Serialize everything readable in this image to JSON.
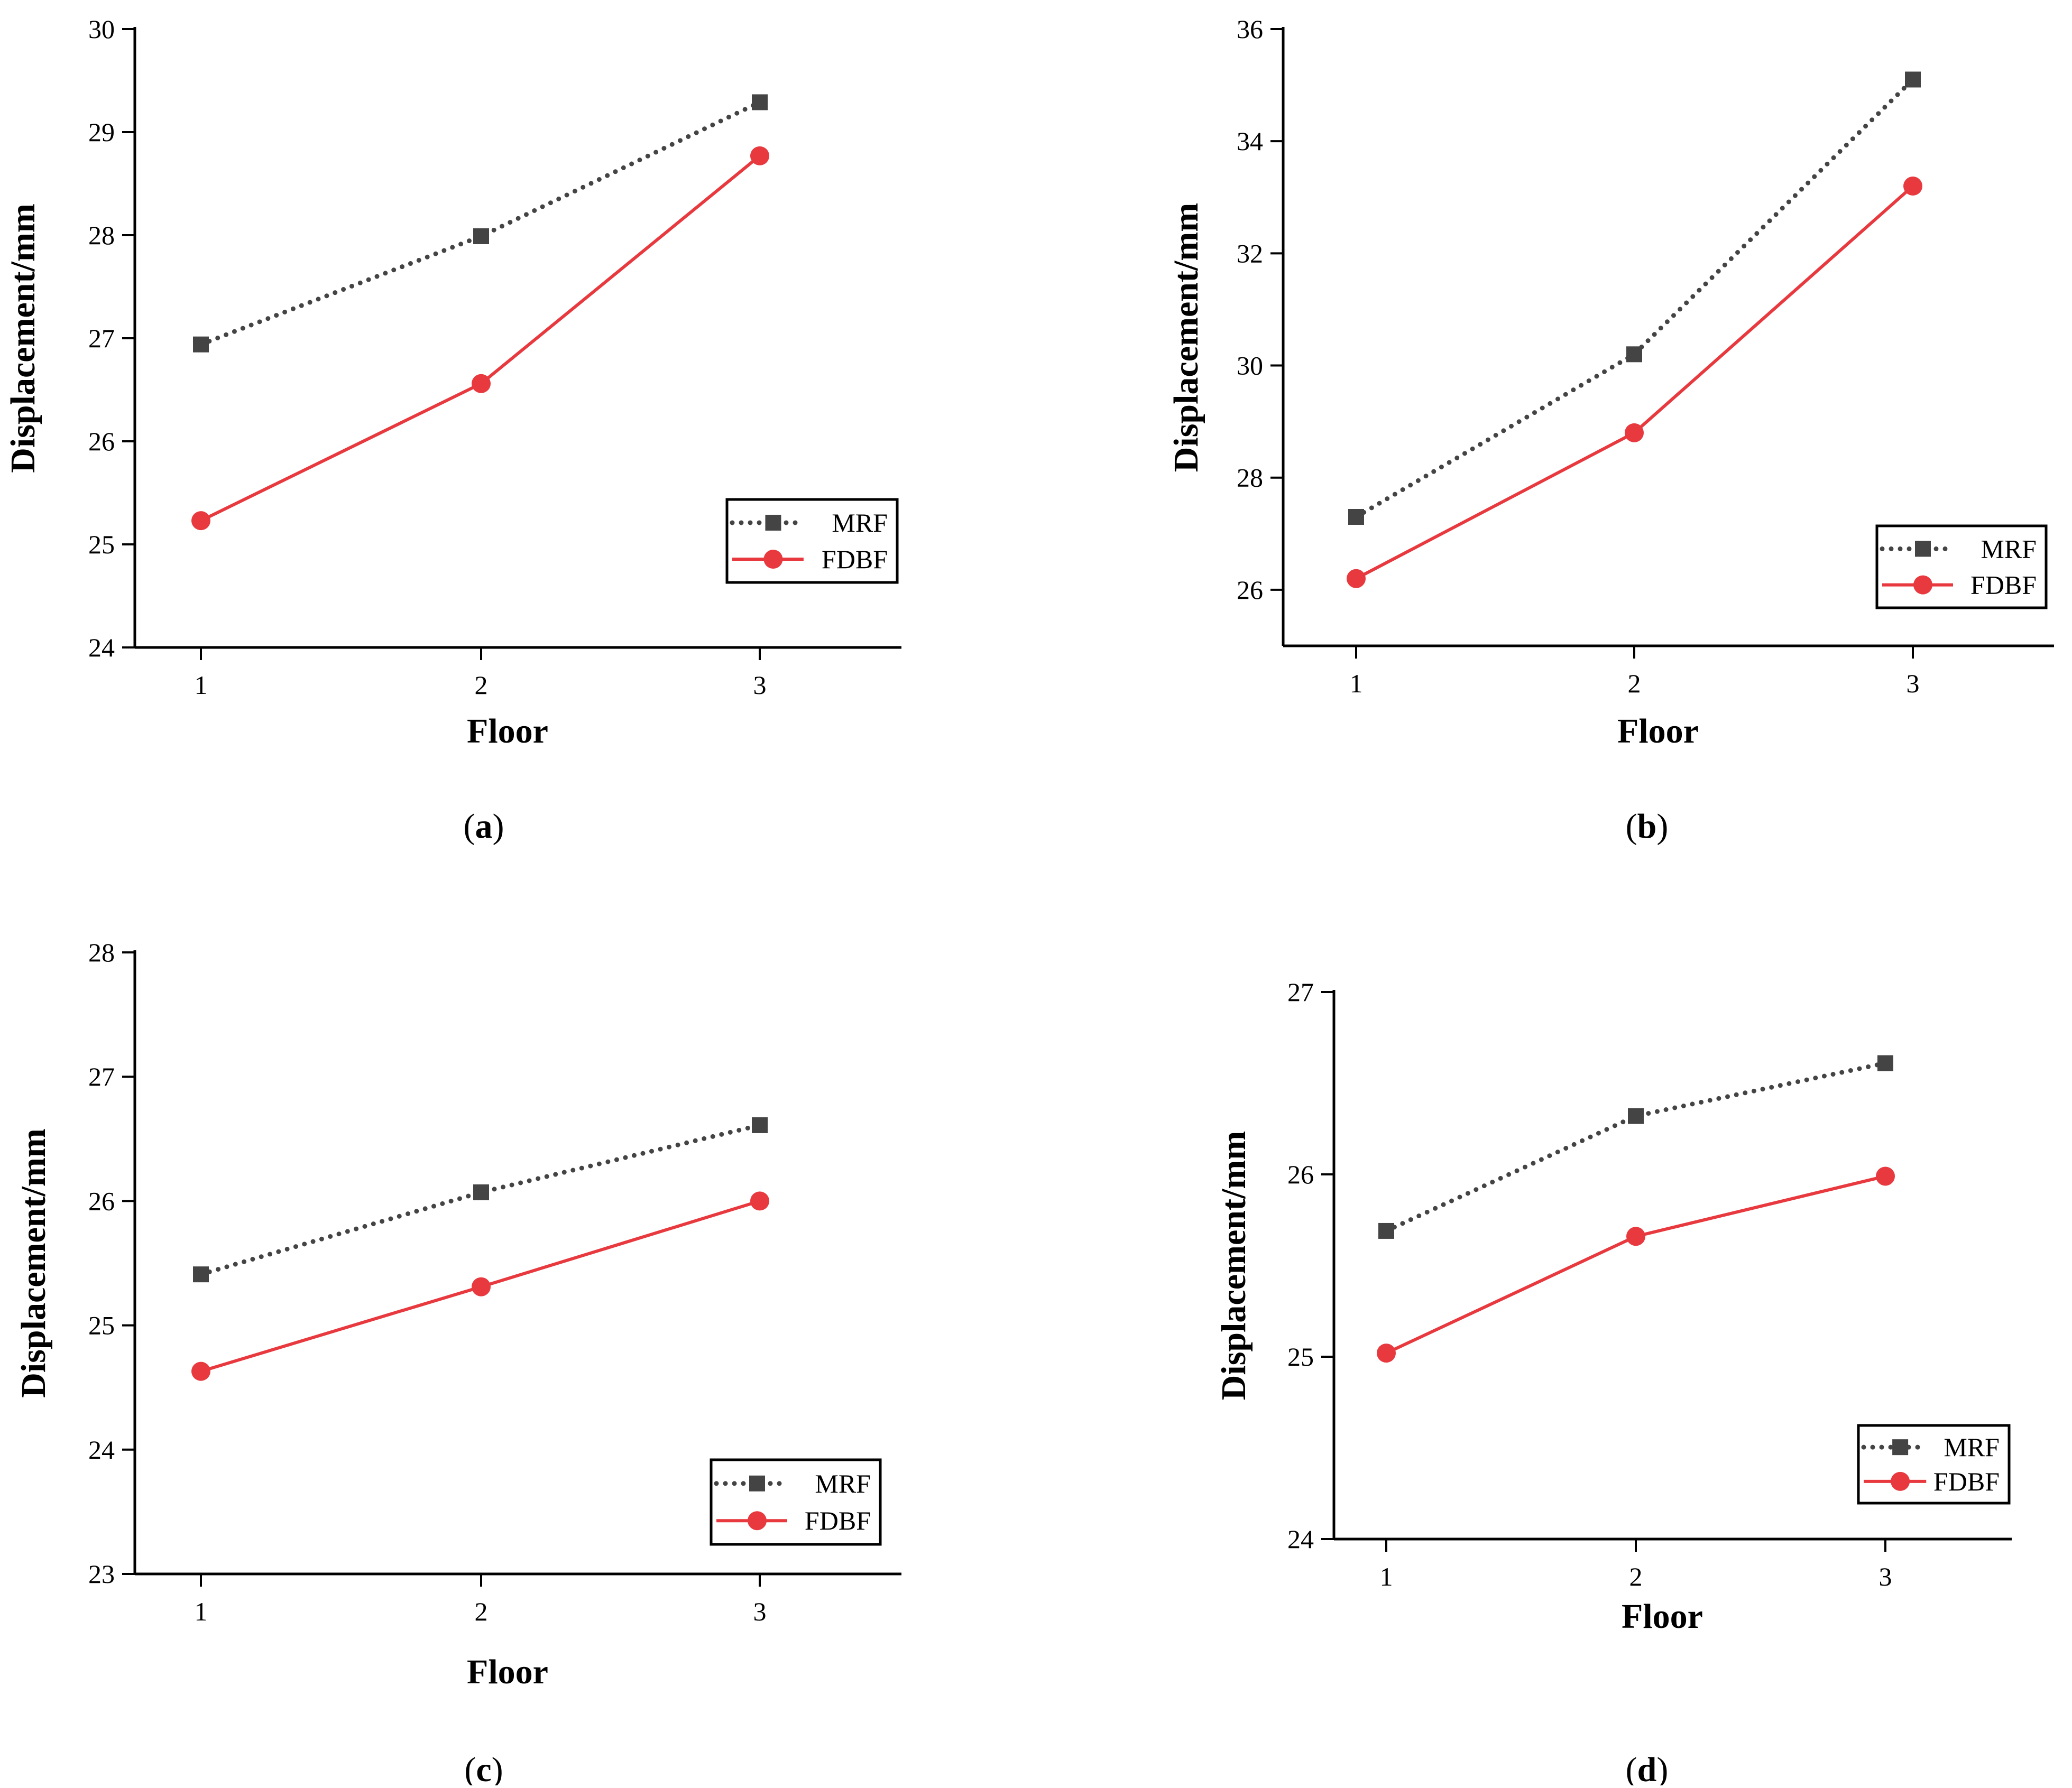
{
  "colors": {
    "mrf": "#444444",
    "fdbf": "#e8393f",
    "axis": "#000000"
  },
  "chart_data": [
    {
      "id": "a",
      "type": "line",
      "caption_letter": "a",
      "xlabel": "Floor",
      "ylabel": "Displacement/mm",
      "categories": [
        1,
        2,
        3
      ],
      "x_ticks": [
        "1",
        "2",
        "3"
      ],
      "ylim": [
        24,
        30
      ],
      "y_ticks": [
        24,
        25,
        26,
        27,
        28,
        29,
        30
      ],
      "legend": {
        "position": "bottom-right",
        "entries": [
          "MRF",
          "FDBF"
        ]
      },
      "series": [
        {
          "name": "MRF",
          "style": "dotted",
          "marker": "square",
          "values": [
            26.94,
            27.99,
            29.29
          ]
        },
        {
          "name": "FDBF",
          "style": "solid",
          "marker": "circle",
          "values": [
            25.23,
            26.56,
            28.77
          ]
        }
      ]
    },
    {
      "id": "b",
      "type": "line",
      "caption_letter": "b",
      "xlabel": "Floor",
      "ylabel": "Displacement/mm",
      "categories": [
        1,
        2,
        3
      ],
      "x_ticks": [
        "1",
        "2",
        "3"
      ],
      "ylim": [
        25,
        36
      ],
      "y_ticks": [
        26,
        28,
        30,
        32,
        34,
        36
      ],
      "legend": {
        "position": "bottom-right",
        "entries": [
          "MRF",
          "FDBF"
        ]
      },
      "series": [
        {
          "name": "MRF",
          "style": "dotted",
          "marker": "square",
          "values": [
            27.3,
            30.2,
            35.1
          ]
        },
        {
          "name": "FDBF",
          "style": "solid",
          "marker": "circle",
          "values": [
            26.2,
            28.8,
            33.2
          ]
        }
      ]
    },
    {
      "id": "c",
      "type": "line",
      "caption_letter": "c",
      "xlabel": "Floor",
      "ylabel": "Displacement/mm",
      "categories": [
        1,
        2,
        3
      ],
      "x_ticks": [
        "1",
        "2",
        "3"
      ],
      "ylim": [
        23,
        28
      ],
      "y_ticks": [
        23,
        24,
        25,
        26,
        27,
        28
      ],
      "legend": {
        "position": "bottom-right",
        "entries": [
          "MRF",
          "FDBF"
        ]
      },
      "series": [
        {
          "name": "MRF",
          "style": "dotted",
          "marker": "square",
          "values": [
            25.41,
            26.07,
            26.61
          ]
        },
        {
          "name": "FDBF",
          "style": "solid",
          "marker": "circle",
          "values": [
            24.63,
            25.31,
            26.0
          ]
        }
      ]
    },
    {
      "id": "d",
      "type": "line",
      "caption_letter": "d",
      "xlabel": "Floor",
      "ylabel": "Displacement/mm",
      "categories": [
        1,
        2,
        3
      ],
      "x_ticks": [
        "1",
        "2",
        "3"
      ],
      "ylim": [
        24,
        27
      ],
      "y_ticks": [
        24,
        25,
        26,
        27
      ],
      "legend": {
        "position": "bottom-right",
        "entries": [
          "MRF",
          "FDBF"
        ]
      },
      "series": [
        {
          "name": "MRF",
          "style": "dotted",
          "marker": "square",
          "values": [
            25.69,
            26.32,
            26.61
          ]
        },
        {
          "name": "FDBF",
          "style": "solid",
          "marker": "circle",
          "values": [
            25.02,
            25.66,
            25.99
          ]
        }
      ]
    }
  ]
}
